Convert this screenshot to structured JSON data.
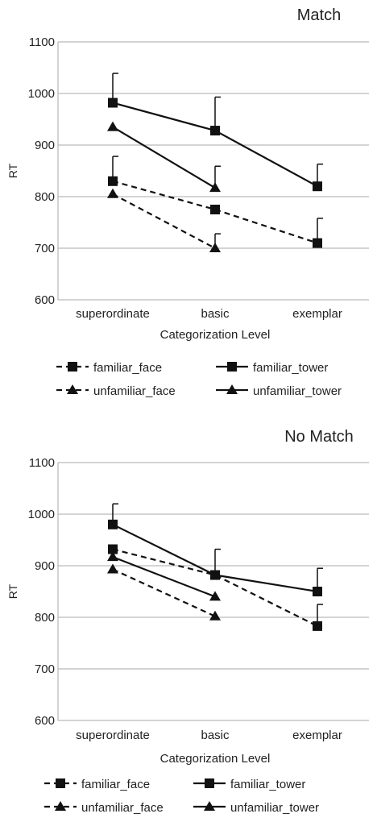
{
  "chart_data": [
    {
      "type": "line",
      "title": "Match",
      "xlabel": "Categorization Level",
      "ylabel": "RT",
      "categories": [
        "superordinate",
        "basic",
        "exemplar"
      ],
      "ylim": [
        600,
        1100
      ],
      "yticks": [
        600,
        700,
        800,
        900,
        1000,
        1100
      ],
      "grid": true,
      "legend_position": "bottom",
      "series": [
        {
          "name": "familiar_face",
          "style": "dashed",
          "marker": "square",
          "values": [
            830,
            775,
            710
          ],
          "error": [
            48,
            null,
            48
          ]
        },
        {
          "name": "familiar_tower",
          "style": "solid",
          "marker": "square",
          "values": [
            982,
            928,
            820
          ],
          "error": [
            57,
            65,
            43
          ]
        },
        {
          "name": "unfamiliar_face",
          "style": "dashed",
          "marker": "triangle",
          "values": [
            805,
            700,
            null
          ],
          "error": [
            null,
            28,
            null
          ]
        },
        {
          "name": "unfamiliar_tower",
          "style": "solid",
          "marker": "triangle",
          "values": [
            935,
            817,
            null
          ],
          "error": [
            null,
            42,
            null
          ]
        }
      ]
    },
    {
      "type": "line",
      "title": "No Match",
      "xlabel": "Categorization Level",
      "ylabel": "RT",
      "categories": [
        "superordinate",
        "basic",
        "exemplar"
      ],
      "ylim": [
        600,
        1100
      ],
      "yticks": [
        600,
        700,
        800,
        900,
        1000,
        1100
      ],
      "grid": true,
      "legend_position": "bottom",
      "series": [
        {
          "name": "familiar_face",
          "style": "dashed",
          "marker": "square",
          "values": [
            932,
            882,
            783
          ],
          "error": [
            null,
            null,
            42
          ]
        },
        {
          "name": "familiar_tower",
          "style": "solid",
          "marker": "square",
          "values": [
            980,
            882,
            850
          ],
          "error": [
            40,
            50,
            45
          ]
        },
        {
          "name": "unfamiliar_face",
          "style": "dashed",
          "marker": "triangle",
          "values": [
            893,
            802,
            null
          ],
          "error": [
            null,
            null,
            null
          ]
        },
        {
          "name": "unfamiliar_tower",
          "style": "solid",
          "marker": "triangle",
          "values": [
            917,
            840,
            null
          ],
          "error": [
            null,
            null,
            null
          ]
        }
      ]
    }
  ]
}
